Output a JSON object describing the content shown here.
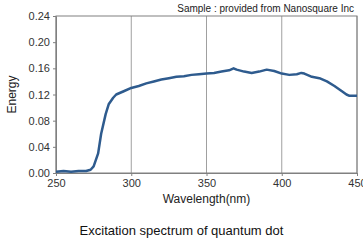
{
  "chart_data": {
    "type": "line",
    "title": "Excitation spectrum of quantum dot",
    "x_label": "Wavelength(nm)",
    "y_label": "Energy",
    "annotation": "Sample : provided from Nanosquare Inc",
    "color": "#2e5b8e",
    "grid": true,
    "x": [
      250,
      255,
      260,
      265,
      270,
      273,
      275,
      278,
      280,
      283,
      285,
      288,
      290,
      295,
      300,
      305,
      310,
      315,
      320,
      325,
      330,
      335,
      340,
      345,
      350,
      355,
      360,
      365,
      368,
      370,
      375,
      380,
      385,
      390,
      395,
      400,
      405,
      410,
      413,
      415,
      420,
      425,
      430,
      435,
      440,
      443,
      445,
      450
    ],
    "values": [
      0.002,
      0.003,
      0.002,
      0.003,
      0.003,
      0.005,
      0.01,
      0.03,
      0.06,
      0.09,
      0.105,
      0.115,
      0.12,
      0.125,
      0.13,
      0.133,
      0.137,
      0.14,
      0.143,
      0.145,
      0.147,
      0.148,
      0.15,
      0.151,
      0.152,
      0.153,
      0.155,
      0.157,
      0.16,
      0.158,
      0.155,
      0.153,
      0.155,
      0.158,
      0.156,
      0.152,
      0.15,
      0.151,
      0.153,
      0.152,
      0.147,
      0.145,
      0.14,
      0.133,
      0.125,
      0.12,
      0.118,
      0.118
    ],
    "xlim": [
      250,
      450
    ],
    "xticks": [
      250,
      300,
      350,
      400,
      450
    ],
    "ylim": [
      0,
      0.24
    ],
    "yticks": [
      {
        "value": 0,
        "label": "0.00"
      },
      {
        "value": 0.04,
        "label": "0.04"
      },
      {
        "value": 0.08,
        "label": "0.08"
      },
      {
        "value": 0.12,
        "label": "0.12"
      },
      {
        "value": 0.16,
        "label": "0.16"
      },
      {
        "value": 0.2,
        "label": "0.20"
      },
      {
        "value": 0.24,
        "label": "0.24"
      }
    ]
  }
}
